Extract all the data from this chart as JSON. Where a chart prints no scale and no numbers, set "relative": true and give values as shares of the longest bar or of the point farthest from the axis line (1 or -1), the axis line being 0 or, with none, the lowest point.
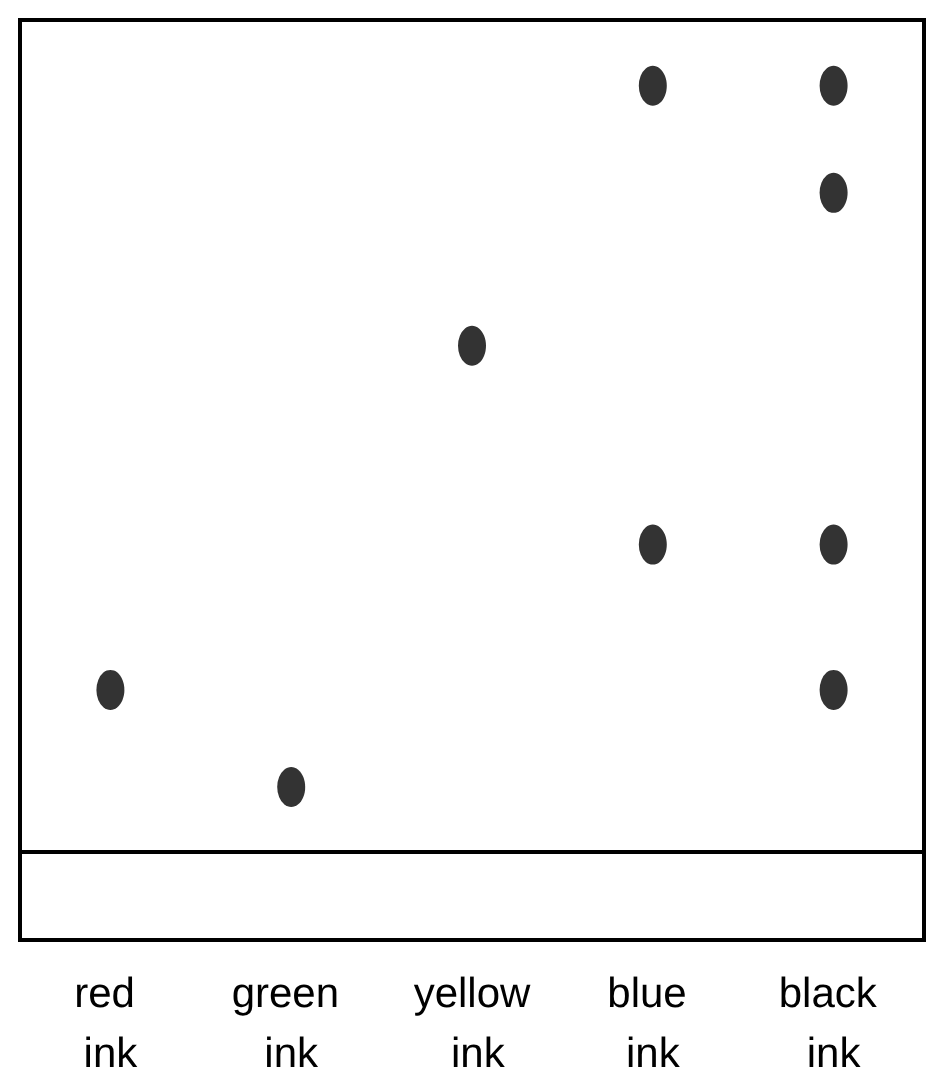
{
  "chart_data": {
    "type": "scatter",
    "relative": true,
    "marker": "circle",
    "categories": [
      "red ink",
      "green ink",
      "yellow ink",
      "blue ink",
      "black ink"
    ],
    "series": [
      {
        "color": "#000000",
        "values": [
          0.21,
          0.083,
          0.66,
          1,
          1
        ]
      },
      {
        "color": "#000000",
        "values": [
          null,
          null,
          null,
          0.4,
          0.86
        ]
      },
      {
        "color": "#000000",
        "values": [
          null,
          null,
          null,
          null,
          0.4
        ]
      },
      {
        "color": "#000000",
        "values": [
          null,
          null,
          null,
          null,
          0.21
        ]
      }
    ]
  }
}
